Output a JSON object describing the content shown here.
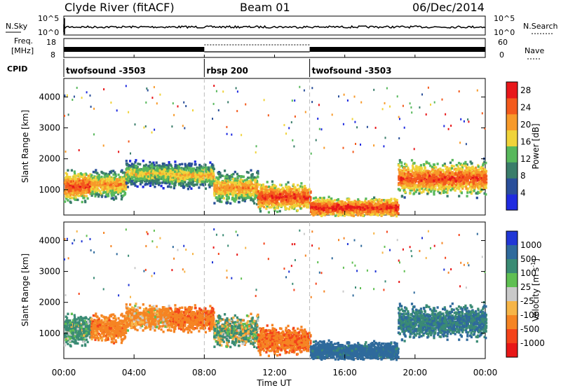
{
  "header": {
    "station": "Clyde River (fitACF)",
    "beam": "Beam 01",
    "date": "06/Dec/2014"
  },
  "status_panel": {
    "nsky_label": "N.Sky",
    "nsky_ticks": [
      "10^5",
      "10^0"
    ],
    "nsearch_label": "N.Search",
    "nsearch_ticks": [
      "10^5",
      "10^0"
    ],
    "freq_label_1": "Freq.",
    "freq_label_2": "[MHz]",
    "freq_ticks": [
      "18",
      "8"
    ],
    "nave_label": "Nave",
    "nave_ticks": [
      "60",
      "0"
    ],
    "cpid_label": "CPID",
    "cpid_segments": [
      {
        "name": "twofsound -3503",
        "start_hour": 0,
        "end_hour": 8
      },
      {
        "name": "rbsp 200",
        "start_hour": 8,
        "end_hour": 14
      },
      {
        "name": "twofsound -3503",
        "start_hour": 14,
        "end_hour": 24
      }
    ]
  },
  "chart_data": [
    {
      "type": "heatmap",
      "panel": "power",
      "ylabel": "Slant Range [km]",
      "ylim": [
        180,
        4600
      ],
      "yticks": [
        1000,
        2000,
        3000,
        4000
      ],
      "xlim": [
        0,
        24
      ],
      "colorbar_label": "Power [dB]",
      "colorbar_ticks": [
        4,
        8,
        12,
        16,
        20,
        24,
        28
      ],
      "colorbar_range": [
        0,
        30
      ],
      "colors": [
        "#1f2be0",
        "#2a4f9a",
        "#3a7d6a",
        "#58b85c",
        "#f0d33a",
        "#f79a2a",
        "#f35a1c",
        "#e8171a"
      ],
      "echo_regions": [
        {
          "x": [
            0.0,
            1.5
          ],
          "y_center": 1150,
          "y_spread": 380,
          "level": 26
        },
        {
          "x": [
            1.5,
            3.5
          ],
          "y_center": 1200,
          "y_spread": 350,
          "level": 22
        },
        {
          "x": [
            3.5,
            6.0
          ],
          "y_center": 1550,
          "y_spread": 330,
          "level": 18
        },
        {
          "x": [
            6.0,
            8.5
          ],
          "y_center": 1500,
          "y_spread": 320,
          "level": 20
        },
        {
          "x": [
            8.5,
            11.0
          ],
          "y_center": 1100,
          "y_spread": 400,
          "level": 22
        },
        {
          "x": [
            11.0,
            14.0
          ],
          "y_center": 800,
          "y_spread": 350,
          "level": 27
        },
        {
          "x": [
            14.0,
            19.0
          ],
          "y_center": 450,
          "y_spread": 250,
          "level": 28
        },
        {
          "x": [
            19.0,
            24.0
          ],
          "y_center": 1400,
          "y_spread": 420,
          "level": 26
        }
      ]
    },
    {
      "type": "heatmap",
      "panel": "velocity",
      "xlabel": "Time UT",
      "ylabel": "Slant Range [km]",
      "ylim": [
        180,
        4600
      ],
      "yticks": [
        1000,
        2000,
        3000,
        4000
      ],
      "xlim": [
        0,
        24
      ],
      "xticks": [
        "00:00",
        "04:00",
        "08:00",
        "12:00",
        "16:00",
        "20:00",
        "00:00"
      ],
      "colorbar_label": "Velocity [m s-1]",
      "colorbar_ticks": [
        1000,
        500,
        100,
        25,
        -25,
        -100,
        -500,
        -1000
      ],
      "colors": [
        "#2137d6",
        "#2f6a9c",
        "#3a8b74",
        "#5fbf52",
        "#c9c9c9",
        "#f6b548",
        "#f58423",
        "#f4431a",
        "#e81717"
      ],
      "echo_regions": [
        {
          "x": [
            0.0,
            1.5
          ],
          "y_center": 1150,
          "y_spread": 380,
          "velocity": 200
        },
        {
          "x": [
            1.5,
            3.5
          ],
          "y_center": 1300,
          "y_spread": 350,
          "velocity": -300
        },
        {
          "x": [
            3.5,
            6.0
          ],
          "y_center": 1550,
          "y_spread": 330,
          "velocity": -200
        },
        {
          "x": [
            6.0,
            8.5
          ],
          "y_center": 1500,
          "y_spread": 320,
          "velocity": -350
        },
        {
          "x": [
            8.5,
            11.0
          ],
          "y_center": 1200,
          "y_spread": 400,
          "velocity": 100
        },
        {
          "x": [
            11.0,
            14.0
          ],
          "y_center": 900,
          "y_spread": 350,
          "velocity": -400
        },
        {
          "x": [
            14.0,
            19.0
          ],
          "y_center": 550,
          "y_spread": 250,
          "velocity": 700
        },
        {
          "x": [
            19.0,
            24.0
          ],
          "y_center": 1400,
          "y_spread": 420,
          "velocity": 500
        }
      ]
    }
  ],
  "labels": {
    "power_cb_label": "Power [dB]",
    "velocity_cb_label": "Velocity [m s",
    "velocity_cb_exp": "-1",
    "velocity_cb_end": "]"
  }
}
